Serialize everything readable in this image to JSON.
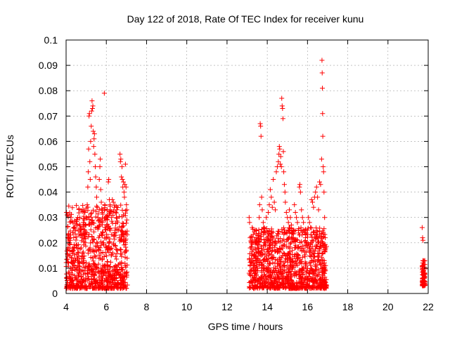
{
  "chart_data": {
    "type": "scatter",
    "title": "Day 122 of 2018, Rate Of TEC Index for receiver kunu",
    "xlabel": "GPS time / hours",
    "ylabel": "ROTI / TECUs",
    "xlim": [
      4,
      22
    ],
    "ylim": [
      0,
      0.1
    ],
    "x_ticks": [
      4,
      6,
      8,
      10,
      12,
      14,
      16,
      18,
      20,
      22
    ],
    "x_tick_labels": [
      "4",
      "6",
      "8",
      "10",
      "12",
      "14",
      "16",
      "18",
      "20",
      "22"
    ],
    "y_ticks": [
      0,
      0.01,
      0.02,
      0.03,
      0.04,
      0.05,
      0.06,
      0.07,
      0.08,
      0.09,
      0.1
    ],
    "y_tick_labels": [
      "0",
      "0.01",
      "0.02",
      "0.03",
      "0.04",
      "0.05",
      "0.06",
      "0.07",
      "0.08",
      "0.09",
      "0.1"
    ],
    "grid": true,
    "marker": "+",
    "series": [
      {
        "name": "ROTI",
        "color": "#ff0000",
        "points": [
          [
            4.02,
            0.032
          ],
          [
            4.05,
            0.031
          ],
          [
            4.08,
            0.022
          ],
          [
            4.1,
            0.018
          ],
          [
            4.12,
            0.012
          ],
          [
            4.15,
            0.008
          ],
          [
            4.18,
            0.02
          ],
          [
            4.2,
            0.015
          ],
          [
            4.22,
            0.01
          ],
          [
            4.25,
            0.006
          ],
          [
            4.28,
            0.014
          ],
          [
            4.3,
            0.009
          ],
          [
            4.33,
            0.005
          ],
          [
            4.36,
            0.017
          ],
          [
            4.4,
            0.011
          ],
          [
            4.43,
            0.007
          ],
          [
            4.46,
            0.013
          ],
          [
            4.5,
            0.019
          ],
          [
            4.55,
            0.029
          ],
          [
            4.58,
            0.03
          ],
          [
            4.6,
            0.025
          ],
          [
            4.62,
            0.016
          ],
          [
            4.65,
            0.008
          ],
          [
            4.68,
            0.012
          ],
          [
            4.7,
            0.005
          ],
          [
            4.75,
            0.018
          ],
          [
            4.8,
            0.022
          ],
          [
            4.85,
            0.028
          ],
          [
            4.88,
            0.013
          ],
          [
            4.9,
            0.009
          ],
          [
            4.95,
            0.02
          ],
          [
            5.0,
            0.03
          ],
          [
            5.02,
            0.024
          ],
          [
            5.05,
            0.035
          ],
          [
            5.08,
            0.042
          ],
          [
            5.1,
            0.048
          ],
          [
            5.12,
            0.057
          ],
          [
            5.14,
            0.07
          ],
          [
            5.16,
            0.071
          ],
          [
            5.18,
            0.052
          ],
          [
            5.2,
            0.045
          ],
          [
            5.22,
            0.06
          ],
          [
            5.25,
            0.066
          ],
          [
            5.27,
            0.072
          ],
          [
            5.29,
            0.076
          ],
          [
            5.31,
            0.073
          ],
          [
            5.33,
            0.074
          ],
          [
            5.35,
            0.064
          ],
          [
            5.37,
            0.058
          ],
          [
            5.39,
            0.061
          ],
          [
            5.41,
            0.063
          ],
          [
            5.43,
            0.055
          ],
          [
            5.45,
            0.05
          ],
          [
            5.47,
            0.046
          ],
          [
            5.5,
            0.042
          ],
          [
            5.52,
            0.038
          ],
          [
            5.55,
            0.034
          ],
          [
            5.58,
            0.03
          ],
          [
            5.6,
            0.026
          ],
          [
            5.62,
            0.022
          ],
          [
            5.65,
            0.045
          ],
          [
            5.68,
            0.05
          ],
          [
            5.7,
            0.053
          ],
          [
            5.72,
            0.041
          ],
          [
            5.75,
            0.036
          ],
          [
            5.78,
            0.032
          ],
          [
            5.8,
            0.028
          ],
          [
            5.83,
            0.024
          ],
          [
            5.86,
            0.02
          ],
          [
            5.9,
            0.079
          ],
          [
            5.92,
            0.035
          ],
          [
            5.95,
            0.03
          ],
          [
            5.98,
            0.026
          ],
          [
            6.0,
            0.022
          ],
          [
            6.02,
            0.018
          ],
          [
            6.05,
            0.033
          ],
          [
            6.08,
            0.03
          ],
          [
            6.1,
            0.044
          ],
          [
            6.12,
            0.045
          ],
          [
            6.15,
            0.037
          ],
          [
            6.18,
            0.035
          ],
          [
            6.2,
            0.033
          ],
          [
            6.25,
            0.03
          ],
          [
            6.3,
            0.037
          ],
          [
            6.35,
            0.036
          ],
          [
            6.4,
            0.034
          ],
          [
            6.45,
            0.032
          ],
          [
            6.5,
            0.03
          ],
          [
            6.55,
            0.028
          ],
          [
            6.6,
            0.025
          ],
          [
            6.65,
            0.022
          ],
          [
            6.68,
            0.055
          ],
          [
            6.7,
            0.052
          ],
          [
            6.72,
            0.053
          ],
          [
            6.75,
            0.046
          ],
          [
            6.78,
            0.05
          ],
          [
            6.8,
            0.045
          ],
          [
            6.82,
            0.042
          ],
          [
            6.85,
            0.044
          ],
          [
            6.88,
            0.04
          ],
          [
            6.9,
            0.038
          ],
          [
            6.92,
            0.043
          ],
          [
            6.95,
            0.051
          ],
          [
            6.98,
            0.042
          ],
          [
            7.0,
            0.035
          ],
          [
            7.02,
            0.029
          ],
          [
            13.1,
            0.03
          ],
          [
            13.12,
            0.028
          ],
          [
            13.15,
            0.022
          ],
          [
            13.2,
            0.018
          ],
          [
            13.25,
            0.026
          ],
          [
            13.3,
            0.02
          ],
          [
            13.35,
            0.015
          ],
          [
            13.4,
            0.025
          ],
          [
            13.45,
            0.022
          ],
          [
            13.5,
            0.018
          ],
          [
            13.55,
            0.016
          ],
          [
            13.6,
            0.03
          ],
          [
            13.62,
            0.035
          ],
          [
            13.65,
            0.067
          ],
          [
            13.67,
            0.066
          ],
          [
            13.69,
            0.062
          ],
          [
            13.72,
            0.038
          ],
          [
            13.75,
            0.033
          ],
          [
            13.8,
            0.028
          ],
          [
            13.85,
            0.026
          ],
          [
            13.9,
            0.024
          ],
          [
            13.95,
            0.03
          ],
          [
            14.0,
            0.022
          ],
          [
            14.05,
            0.032
          ],
          [
            14.1,
            0.035
          ],
          [
            14.15,
            0.041
          ],
          [
            14.2,
            0.038
          ],
          [
            14.25,
            0.034
          ],
          [
            14.3,
            0.045
          ],
          [
            14.35,
            0.036
          ],
          [
            14.4,
            0.033
          ],
          [
            14.45,
            0.048
          ],
          [
            14.5,
            0.05
          ],
          [
            14.55,
            0.052
          ],
          [
            14.58,
            0.055
          ],
          [
            14.6,
            0.058
          ],
          [
            14.62,
            0.057
          ],
          [
            14.65,
            0.051
          ],
          [
            14.67,
            0.054
          ],
          [
            14.7,
            0.05
          ],
          [
            14.72,
            0.077
          ],
          [
            14.74,
            0.074
          ],
          [
            14.76,
            0.073
          ],
          [
            14.78,
            0.069
          ],
          [
            14.8,
            0.056
          ],
          [
            14.82,
            0.048
          ],
          [
            14.85,
            0.043
          ],
          [
            14.88,
            0.04
          ],
          [
            14.9,
            0.036
          ],
          [
            14.95,
            0.032
          ],
          [
            15.0,
            0.03
          ],
          [
            15.05,
            0.028
          ],
          [
            15.1,
            0.033
          ],
          [
            15.15,
            0.03
          ],
          [
            15.2,
            0.027
          ],
          [
            15.25,
            0.024
          ],
          [
            15.3,
            0.022
          ],
          [
            15.35,
            0.035
          ],
          [
            15.4,
            0.032
          ],
          [
            15.45,
            0.03
          ],
          [
            15.5,
            0.028
          ],
          [
            15.55,
            0.025
          ],
          [
            15.6,
            0.042
          ],
          [
            15.62,
            0.043
          ],
          [
            15.65,
            0.04
          ],
          [
            15.7,
            0.033
          ],
          [
            15.75,
            0.03
          ],
          [
            15.8,
            0.028
          ],
          [
            15.85,
            0.024
          ],
          [
            15.9,
            0.022
          ],
          [
            15.95,
            0.02
          ],
          [
            16.0,
            0.025
          ],
          [
            16.05,
            0.03
          ],
          [
            16.1,
            0.028
          ],
          [
            16.15,
            0.026
          ],
          [
            16.2,
            0.037
          ],
          [
            16.25,
            0.036
          ],
          [
            16.3,
            0.034
          ],
          [
            16.35,
            0.038
          ],
          [
            16.4,
            0.04
          ],
          [
            16.45,
            0.042
          ],
          [
            16.5,
            0.038
          ],
          [
            16.55,
            0.033
          ],
          [
            16.6,
            0.044
          ],
          [
            16.65,
            0.043
          ],
          [
            16.7,
            0.053
          ],
          [
            16.72,
            0.092
          ],
          [
            16.73,
            0.087
          ],
          [
            16.74,
            0.081
          ],
          [
            16.75,
            0.071
          ],
          [
            16.76,
            0.062
          ],
          [
            16.78,
            0.05
          ],
          [
            16.8,
            0.048
          ],
          [
            16.82,
            0.04
          ],
          [
            16.85,
            0.03
          ],
          [
            16.88,
            0.022
          ],
          [
            16.9,
            0.018
          ],
          [
            21.7,
            0.026
          ],
          [
            21.72,
            0.022
          ],
          [
            21.74,
            0.021
          ],
          [
            21.75,
            0.013
          ],
          [
            21.76,
            0.012
          ],
          [
            21.77,
            0.009
          ],
          [
            21.78,
            0.007
          ],
          [
            21.79,
            0.006
          ],
          [
            21.8,
            0.005
          ],
          [
            21.81,
            0.004
          ],
          [
            21.82,
            0.008
          ],
          [
            21.83,
            0.013
          ]
        ]
      }
    ],
    "dense_clusters": [
      {
        "x_range": [
          4.0,
          7.05
        ],
        "y_range": [
          0.002,
          0.035
        ]
      },
      {
        "x_range": [
          13.1,
          16.95
        ],
        "y_range": [
          0.002,
          0.026
        ]
      },
      {
        "x_range": [
          21.7,
          21.85
        ],
        "y_range": [
          0.003,
          0.013
        ]
      }
    ]
  }
}
